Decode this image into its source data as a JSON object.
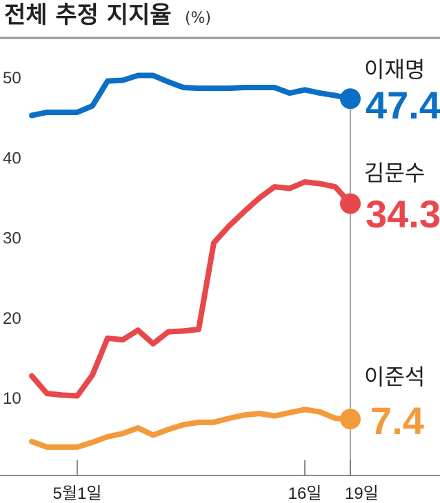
{
  "chart_data": {
    "type": "line",
    "title": "전체 추정 지지율",
    "unit": "(%)",
    "ylim": [
      0,
      52
    ],
    "yticks": [
      10,
      20,
      30,
      40,
      50
    ],
    "xlabels": [
      {
        "label": "5월1일",
        "index": 3
      },
      {
        "label": "16일",
        "index": 18
      },
      {
        "label": "19일",
        "index": 21
      }
    ],
    "x": [
      0,
      1,
      2,
      3,
      4,
      5,
      6,
      7,
      8,
      9,
      10,
      11,
      12,
      13,
      14,
      15,
      16,
      17,
      18,
      19,
      20,
      21
    ],
    "series": [
      {
        "name": "이재명",
        "color": "#0b6fc4",
        "final_value": "47.4",
        "values": [
          45.3,
          45.7,
          45.7,
          45.7,
          46.5,
          49.6,
          49.7,
          50.3,
          50.3,
          49.5,
          48.8,
          48.7,
          48.7,
          48.7,
          48.8,
          48.8,
          48.8,
          48.1,
          48.5,
          48.1,
          47.8,
          47.4
        ]
      },
      {
        "name": "김문수",
        "color": "#e8474c",
        "final_value": "34.3",
        "values": [
          12.8,
          10.6,
          10.4,
          10.3,
          12.9,
          17.5,
          17.3,
          18.5,
          16.8,
          18.3,
          18.4,
          18.6,
          29.4,
          31.5,
          33.3,
          35.0,
          36.4,
          36.2,
          37.0,
          36.8,
          36.4,
          34.3
        ]
      },
      {
        "name": "이준석",
        "color": "#f39a3c",
        "final_value": "7.4",
        "values": [
          4.6,
          3.9,
          3.9,
          3.9,
          4.5,
          5.2,
          5.6,
          6.3,
          5.4,
          6.1,
          6.7,
          7.0,
          7.0,
          7.5,
          7.9,
          8.1,
          7.8,
          8.2,
          8.6,
          8.3,
          7.5,
          7.4
        ]
      }
    ]
  }
}
